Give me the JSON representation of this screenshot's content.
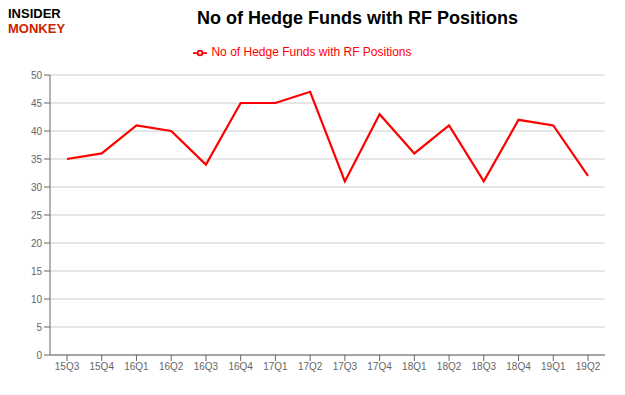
{
  "chart_data": {
    "type": "line",
    "title": "No of Hedge Funds with RF Positions",
    "annotations": [
      {
        "text": "INSIDER",
        "color": "#000000"
      },
      {
        "text": "MONKEY",
        "color": "#cc2200"
      }
    ],
    "categories": [
      "15Q3",
      "15Q4",
      "16Q1",
      "16Q2",
      "16Q3",
      "16Q4",
      "17Q1",
      "17Q2",
      "17Q3",
      "17Q4",
      "18Q1",
      "18Q2",
      "18Q3",
      "18Q4",
      "19Q1",
      "19Q2"
    ],
    "series": [
      {
        "name": "No of Hedge Funds with RF Positions",
        "color": "#ff0000",
        "values": [
          35,
          36,
          41,
          40,
          34,
          45,
          45,
          47,
          31,
          43,
          36,
          41,
          31,
          42,
          41,
          32
        ]
      }
    ],
    "ylim": [
      0,
      50
    ],
    "yticks": [
      0,
      5,
      10,
      15,
      20,
      25,
      30,
      35,
      40,
      45,
      50
    ],
    "grid": true,
    "legend": "top"
  }
}
